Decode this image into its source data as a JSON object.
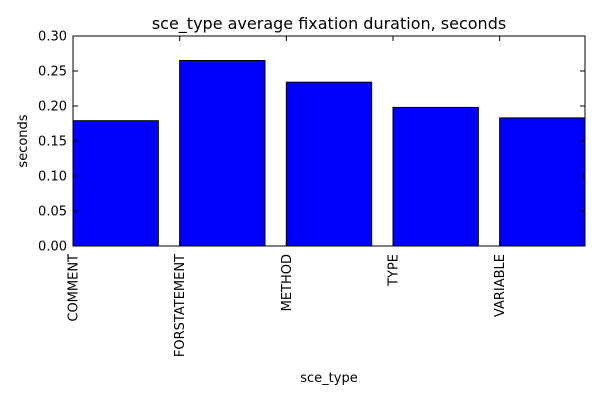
{
  "chart_data": {
    "type": "bar",
    "title": "sce_type average fixation duration, seconds",
    "xlabel": "sce_type",
    "ylabel": "seconds",
    "categories": [
      "COMMENT",
      "FORSTATEMENT",
      "METHOD",
      "TYPE",
      "VARIABLE"
    ],
    "values": [
      0.179,
      0.265,
      0.234,
      0.198,
      0.183
    ],
    "ylim": [
      0,
      0.3
    ],
    "yticks": [
      "0.00",
      "0.05",
      "0.10",
      "0.15",
      "0.20",
      "0.25",
      "0.30"
    ],
    "grid": false,
    "bar_color": "#0000ff",
    "edge_color": "#000000"
  }
}
